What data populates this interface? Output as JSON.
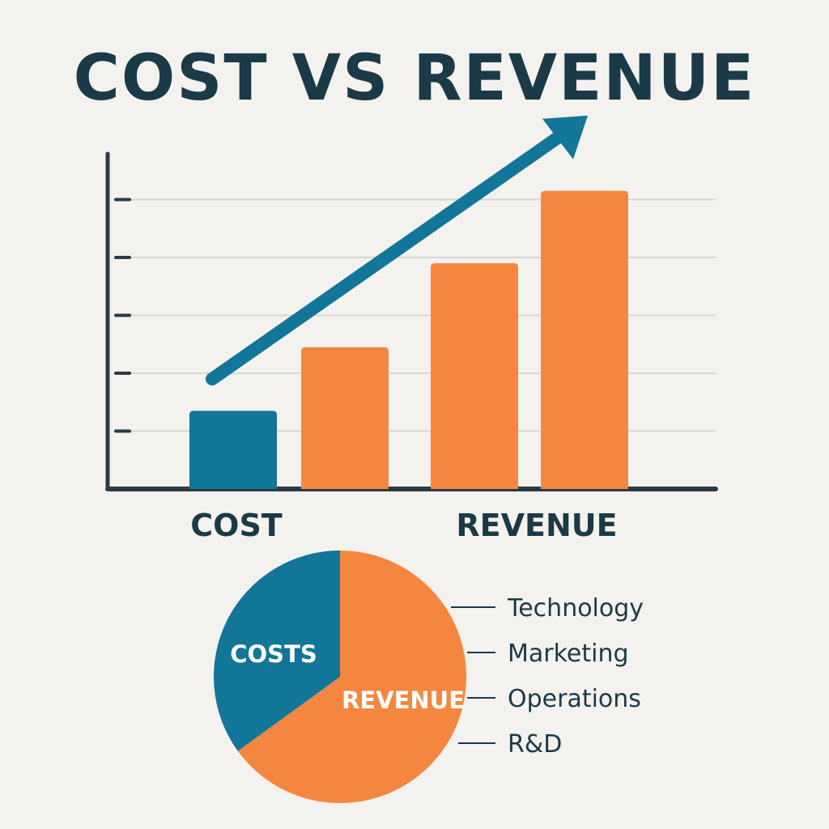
{
  "title": "COST VS REVENUE",
  "colors": {
    "cost": "#127699",
    "revenue": "#f5863f",
    "text": "#1b3a47",
    "axis": "#2b3a42",
    "grid": "#d7d6d3",
    "background": "#f4f2ee"
  },
  "chart_data": [
    {
      "type": "bar",
      "title": "COST VS REVENUE",
      "categories": [
        "COST",
        "REVENUE"
      ],
      "series": [
        {
          "values": [
            1.35,
            2.45
          ],
          "color": "#127699",
          "kind": "cost then revenue"
        },
        {
          "values": [
            3.9,
            5.15
          ],
          "color": "#f5863f"
        }
      ],
      "bar_colors": [
        "#127699",
        "#f5863f",
        "#f5863f",
        "#f5863f"
      ],
      "bar_values": [
        1.35,
        2.45,
        3.9,
        5.15
      ],
      "ylim": [
        0,
        6
      ],
      "yticks": [
        1,
        2,
        3,
        4,
        5
      ],
      "grid": true,
      "trend_arrow": {
        "from": 1.9,
        "to": 6.2,
        "color": "#127699"
      }
    },
    {
      "type": "pie",
      "slices": [
        {
          "label": "COSTS",
          "value": 35,
          "color": "#127699"
        },
        {
          "label": "REVENUE",
          "value": 65,
          "color": "#f5863f"
        }
      ],
      "legend": [
        "Technology",
        "Marketing",
        "Operations",
        "R&D"
      ],
      "legend_position": "right"
    }
  ]
}
